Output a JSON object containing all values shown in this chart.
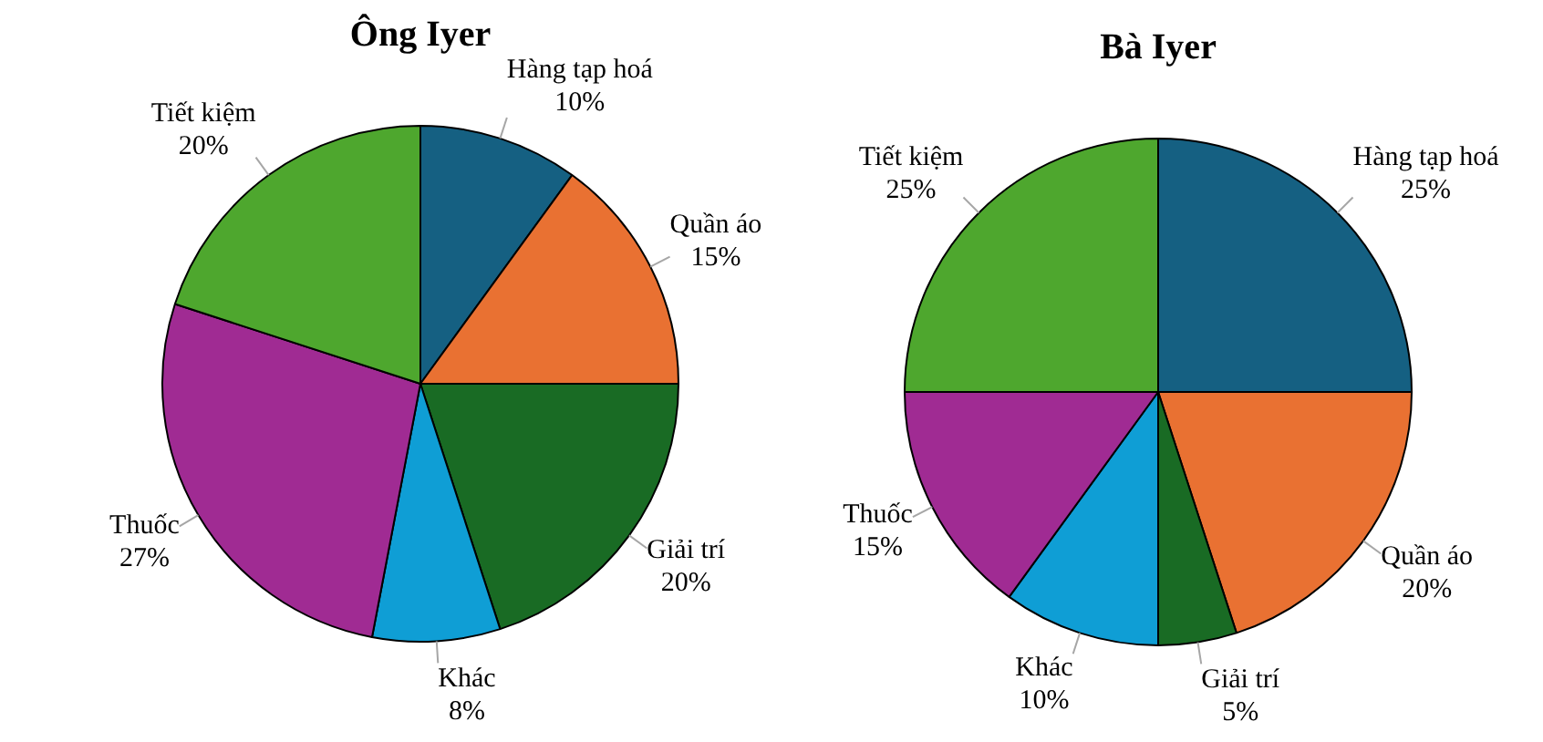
{
  "chart_data": [
    {
      "type": "pie",
      "title": "Ông Iyer",
      "categories": [
        "Hàng tạp hoá",
        "Quần áo",
        "Giải trí",
        "Khác",
        "Thuốc",
        "Tiết kiệm"
      ],
      "values": [
        10,
        15,
        20,
        8,
        27,
        20
      ],
      "colors": [
        "#156082",
        "#e97132",
        "#196b24",
        "#0f9ed5",
        "#a02b93",
        "#4ea72e"
      ],
      "value_labels": [
        "10%",
        "15%",
        "20%",
        "8%",
        "27%",
        "20%"
      ]
    },
    {
      "type": "pie",
      "title": "Bà Iyer",
      "categories": [
        "Hàng tạp hoá",
        "Quần áo",
        "Giải trí",
        "Khác",
        "Thuốc",
        "Tiết kiệm"
      ],
      "values": [
        25,
        20,
        5,
        10,
        15,
        25
      ],
      "colors": [
        "#156082",
        "#e97132",
        "#196b24",
        "#0f9ed5",
        "#a02b93",
        "#4ea72e"
      ],
      "value_labels": [
        "25%",
        "20%",
        "5%",
        "10%",
        "15%",
        "25%"
      ]
    }
  ]
}
